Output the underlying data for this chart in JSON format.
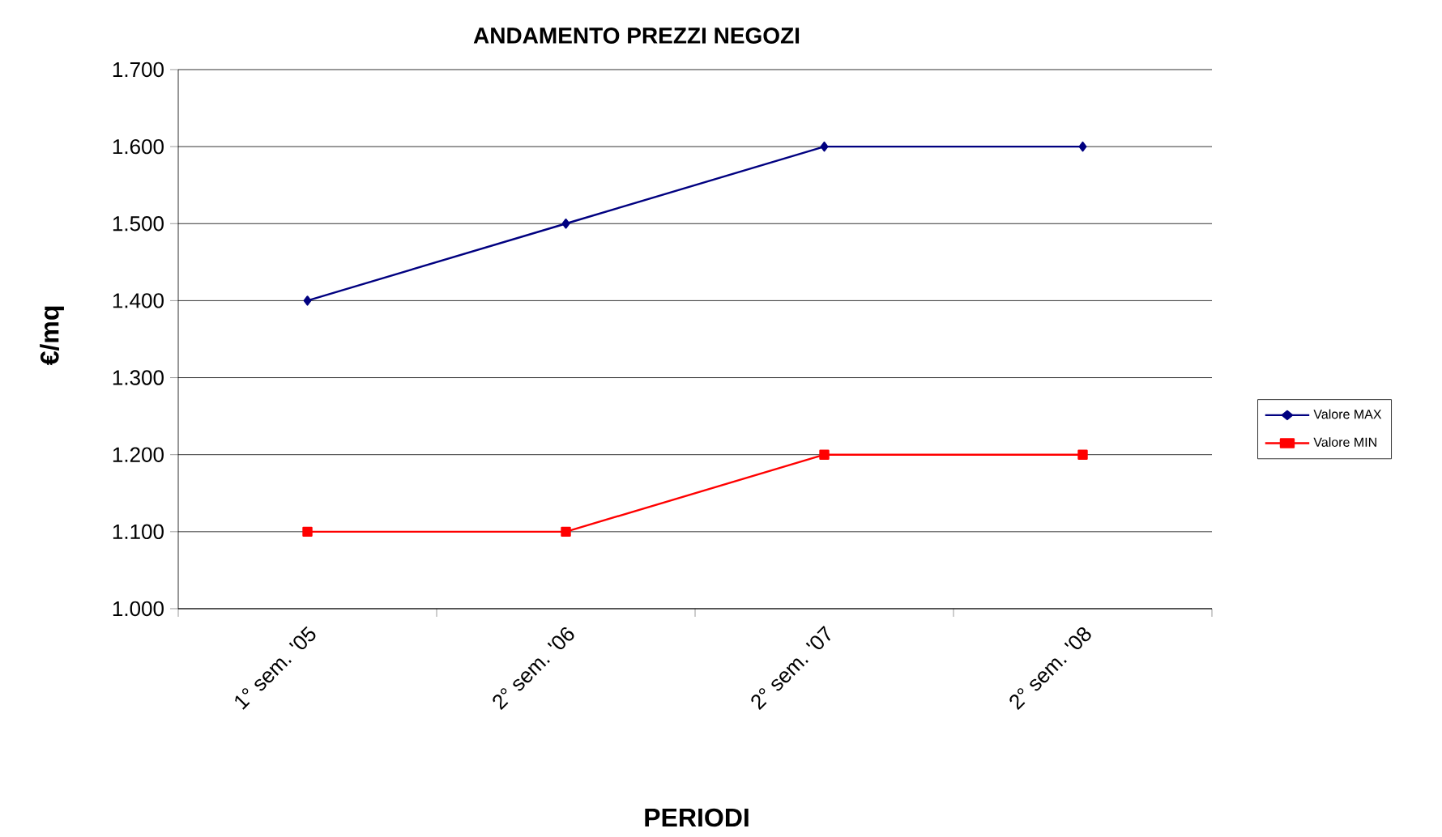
{
  "chart_data": {
    "type": "line",
    "title": "ANDAMENTO PREZZI NEGOZI",
    "xlabel": "PERIODI",
    "ylabel": "€/mq",
    "categories": [
      "1° sem. '05",
      "2° sem. '06",
      "2° sem. '07",
      "2° sem. '08"
    ],
    "series": [
      {
        "name": "Valore MAX",
        "color": "#000080",
        "marker": "diamond",
        "values": [
          1400,
          1500,
          1600,
          1600
        ]
      },
      {
        "name": "Valore MIN",
        "color": "#ff0000",
        "marker": "square",
        "values": [
          1100,
          1100,
          1200,
          1200
        ]
      }
    ],
    "ylim": [
      1000,
      1700
    ],
    "yticks": [
      {
        "value": 1000,
        "label": "1.000"
      },
      {
        "value": 1100,
        "label": "1.100"
      },
      {
        "value": 1200,
        "label": "1.200"
      },
      {
        "value": 1300,
        "label": "1.300"
      },
      {
        "value": 1400,
        "label": "1.400"
      },
      {
        "value": 1500,
        "label": "1.500"
      },
      {
        "value": 1600,
        "label": "1.600"
      },
      {
        "value": 1700,
        "label": "1.700"
      }
    ],
    "grid": "y",
    "legend": "right",
    "line_style": "solid"
  }
}
